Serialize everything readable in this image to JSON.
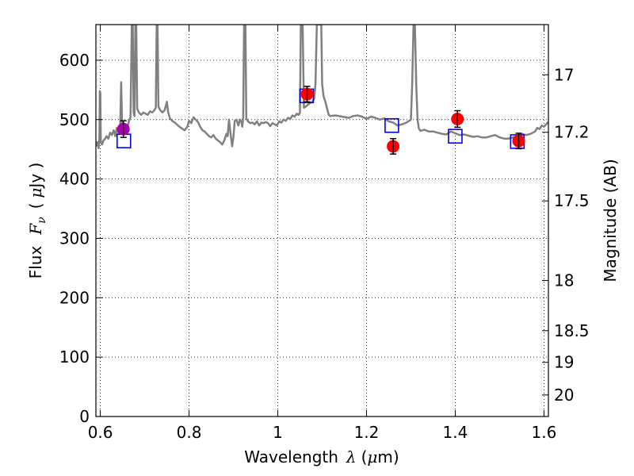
{
  "chart_data": {
    "type": "scatter",
    "xlabel": {
      "prefix": "Wavelength",
      "symbol": "λ",
      "unit": "(",
      "unit_mu": "μ",
      "unit_rest": "m)"
    },
    "ylabel": {
      "prefix": "Flux",
      "symbol_F": "F",
      "symbol_sub": "ν",
      "unit_open": "(",
      "unit_mu": "μ",
      "unit_rest": "Jy )"
    },
    "y2label": "Magnitude (AB)",
    "xlim": [
      0.59,
      1.61
    ],
    "ylim": [
      0,
      660
    ],
    "grid": true,
    "x_ticks": [
      {
        "value": 0.6,
        "label": "0.6"
      },
      {
        "value": 0.8,
        "label": "0.8"
      },
      {
        "value": 1.0,
        "label": "1"
      },
      {
        "value": 1.2,
        "label": "1.2"
      },
      {
        "value": 1.4,
        "label": "1.4"
      },
      {
        "value": 1.6,
        "label": "1.6"
      }
    ],
    "y_ticks": [
      {
        "value": 0,
        "label": "0"
      },
      {
        "value": 100,
        "label": "100"
      },
      {
        "value": 200,
        "label": "200"
      },
      {
        "value": 300,
        "label": "300"
      },
      {
        "value": 400,
        "label": "400"
      },
      {
        "value": 500,
        "label": "500"
      },
      {
        "value": 600,
        "label": "600"
      }
    ],
    "magnitude_ticks": [
      {
        "mag": 17,
        "label": "17"
      },
      {
        "mag": 17.2,
        "label": "17.2"
      },
      {
        "mag": 17.5,
        "label": "17.5"
      },
      {
        "mag": 18,
        "label": "18"
      },
      {
        "mag": 18.5,
        "label": "18.5"
      },
      {
        "mag": 19,
        "label": "19"
      },
      {
        "mag": 20,
        "label": "20"
      }
    ],
    "series": [
      {
        "kind": "spectrum",
        "color": "#808080",
        "points": [
          [
            0.59,
            455
          ],
          [
            0.593,
            462
          ],
          [
            0.596,
            452
          ],
          [
            0.598,
            470
          ],
          [
            0.599,
            548
          ],
          [
            0.6,
            545
          ],
          [
            0.601,
            462
          ],
          [
            0.604,
            458
          ],
          [
            0.607,
            465
          ],
          [
            0.61,
            467
          ],
          [
            0.614,
            472
          ],
          [
            0.618,
            468
          ],
          [
            0.622,
            478
          ],
          [
            0.626,
            474
          ],
          [
            0.63,
            482
          ],
          [
            0.634,
            472
          ],
          [
            0.637,
            486
          ],
          [
            0.64,
            478
          ],
          [
            0.643,
            480
          ],
          [
            0.645,
            495
          ],
          [
            0.647,
            563
          ],
          [
            0.649,
            497
          ],
          [
            0.652,
            486
          ],
          [
            0.656,
            490
          ],
          [
            0.66,
            484
          ],
          [
            0.664,
            496
          ],
          [
            0.668,
            505
          ],
          [
            0.671,
            660
          ],
          [
            0.673,
            660
          ],
          [
            0.675,
            512
          ],
          [
            0.677,
            506
          ],
          [
            0.679,
            660
          ],
          [
            0.681,
            660
          ],
          [
            0.683,
            518
          ],
          [
            0.687,
            512
          ],
          [
            0.692,
            508
          ],
          [
            0.697,
            512
          ],
          [
            0.702,
            510
          ],
          [
            0.707,
            508
          ],
          [
            0.712,
            514
          ],
          [
            0.717,
            512
          ],
          [
            0.722,
            516
          ],
          [
            0.725,
            520
          ],
          [
            0.727,
            660
          ],
          [
            0.729,
            660
          ],
          [
            0.731,
            522
          ],
          [
            0.735,
            516
          ],
          [
            0.74,
            512
          ],
          [
            0.745,
            516
          ],
          [
            0.75,
            530
          ],
          [
            0.753,
            512
          ],
          [
            0.757,
            502
          ],
          [
            0.762,
            498
          ],
          [
            0.768,
            495
          ],
          [
            0.775,
            490
          ],
          [
            0.782,
            486
          ],
          [
            0.79,
            482
          ],
          [
            0.796,
            488
          ],
          [
            0.8,
            498
          ],
          [
            0.805,
            494
          ],
          [
            0.81,
            504
          ],
          [
            0.815,
            500
          ],
          [
            0.82,
            496
          ],
          [
            0.825,
            488
          ],
          [
            0.83,
            482
          ],
          [
            0.835,
            480
          ],
          [
            0.84,
            476
          ],
          [
            0.845,
            472
          ],
          [
            0.85,
            470
          ],
          [
            0.855,
            474
          ],
          [
            0.86,
            468
          ],
          [
            0.865,
            465
          ],
          [
            0.87,
            462
          ],
          [
            0.875,
            458
          ],
          [
            0.88,
            466
          ],
          [
            0.884,
            476
          ],
          [
            0.887,
            472
          ],
          [
            0.89,
            500
          ],
          [
            0.893,
            480
          ],
          [
            0.897,
            455
          ],
          [
            0.9,
            470
          ],
          [
            0.903,
            498
          ],
          [
            0.907,
            500
          ],
          [
            0.911,
            490
          ],
          [
            0.915,
            500
          ],
          [
            0.918,
            496
          ],
          [
            0.92,
            488
          ],
          [
            0.922,
            505
          ],
          [
            0.924,
            660
          ],
          [
            0.927,
            660
          ],
          [
            0.929,
            502
          ],
          [
            0.933,
            497
          ],
          [
            0.938,
            494
          ],
          [
            0.943,
            495
          ],
          [
            0.948,
            492
          ],
          [
            0.953,
            497
          ],
          [
            0.958,
            490
          ],
          [
            0.963,
            495
          ],
          [
            0.968,
            494
          ],
          [
            0.973,
            496
          ],
          [
            0.978,
            494
          ],
          [
            0.983,
            489
          ],
          [
            0.988,
            494
          ],
          [
            0.993,
            492
          ],
          [
            0.998,
            490
          ],
          [
            1.003,
            497
          ],
          [
            1.008,
            495
          ],
          [
            1.013,
            500
          ],
          [
            1.018,
            498
          ],
          [
            1.023,
            503
          ],
          [
            1.028,
            501
          ],
          [
            1.033,
            507
          ],
          [
            1.038,
            505
          ],
          [
            1.043,
            510
          ],
          [
            1.047,
            508
          ],
          [
            1.05,
            512
          ],
          [
            1.052,
            660
          ],
          [
            1.056,
            660
          ],
          [
            1.059,
            520
          ],
          [
            1.063,
            522
          ],
          [
            1.068,
            525
          ],
          [
            1.073,
            528
          ],
          [
            1.078,
            530
          ],
          [
            1.082,
            535
          ],
          [
            1.085,
            560
          ],
          [
            1.088,
            660
          ],
          [
            1.098,
            660
          ],
          [
            1.1,
            560
          ],
          [
            1.103,
            540
          ],
          [
            1.108,
            528
          ],
          [
            1.112,
            516
          ],
          [
            1.115,
            508
          ],
          [
            1.118,
            506
          ],
          [
            1.13,
            507
          ],
          [
            1.145,
            505
          ],
          [
            1.16,
            503
          ],
          [
            1.17,
            506
          ],
          [
            1.18,
            507
          ],
          [
            1.19,
            505
          ],
          [
            1.2,
            501
          ],
          [
            1.21,
            505
          ],
          [
            1.22,
            503
          ],
          [
            1.23,
            500
          ],
          [
            1.24,
            502
          ],
          [
            1.25,
            497
          ],
          [
            1.26,
            495
          ],
          [
            1.27,
            490
          ],
          [
            1.28,
            492
          ],
          [
            1.29,
            495
          ],
          [
            1.3,
            500
          ],
          [
            1.303,
            560
          ],
          [
            1.306,
            660
          ],
          [
            1.309,
            660
          ],
          [
            1.312,
            560
          ],
          [
            1.315,
            500
          ],
          [
            1.318,
            485
          ],
          [
            1.322,
            481
          ],
          [
            1.33,
            483
          ],
          [
            1.34,
            480
          ],
          [
            1.35,
            480
          ],
          [
            1.36,
            478
          ],
          [
            1.37,
            476
          ],
          [
            1.38,
            475
          ],
          [
            1.39,
            480
          ],
          [
            1.4,
            477
          ],
          [
            1.41,
            474
          ],
          [
            1.42,
            475
          ],
          [
            1.43,
            473
          ],
          [
            1.44,
            471
          ],
          [
            1.45,
            472
          ],
          [
            1.46,
            470
          ],
          [
            1.47,
            470
          ],
          [
            1.48,
            472
          ],
          [
            1.49,
            474
          ],
          [
            1.5,
            470
          ],
          [
            1.51,
            468
          ],
          [
            1.52,
            468
          ],
          [
            1.53,
            470
          ],
          [
            1.54,
            472
          ],
          [
            1.55,
            476
          ],
          [
            1.56,
            474
          ],
          [
            1.57,
            476
          ],
          [
            1.58,
            480
          ],
          [
            1.585,
            486
          ],
          [
            1.59,
            484
          ],
          [
            1.595,
            490
          ],
          [
            1.6,
            488
          ],
          [
            1.605,
            492
          ],
          [
            1.61,
            496
          ]
        ]
      },
      {
        "kind": "model_squares",
        "color": "#0000ff",
        "points": [
          {
            "x": 0.653,
            "y": 464
          },
          {
            "x": 1.065,
            "y": 540
          },
          {
            "x": 1.257,
            "y": 490
          },
          {
            "x": 1.4,
            "y": 472
          },
          {
            "x": 1.54,
            "y": 463
          }
        ]
      },
      {
        "kind": "observed",
        "color": "#ff0000",
        "points": [
          {
            "x": 1.066,
            "y": 543,
            "err": 13
          },
          {
            "x": 1.26,
            "y": 455,
            "err": 13
          },
          {
            "x": 1.405,
            "y": 501,
            "err": 14
          },
          {
            "x": 1.543,
            "y": 464,
            "err": 13
          }
        ]
      },
      {
        "kind": "observed",
        "color": "#aa00aa",
        "points": [
          {
            "x": 0.652,
            "y": 484,
            "err": 14
          }
        ]
      }
    ]
  }
}
